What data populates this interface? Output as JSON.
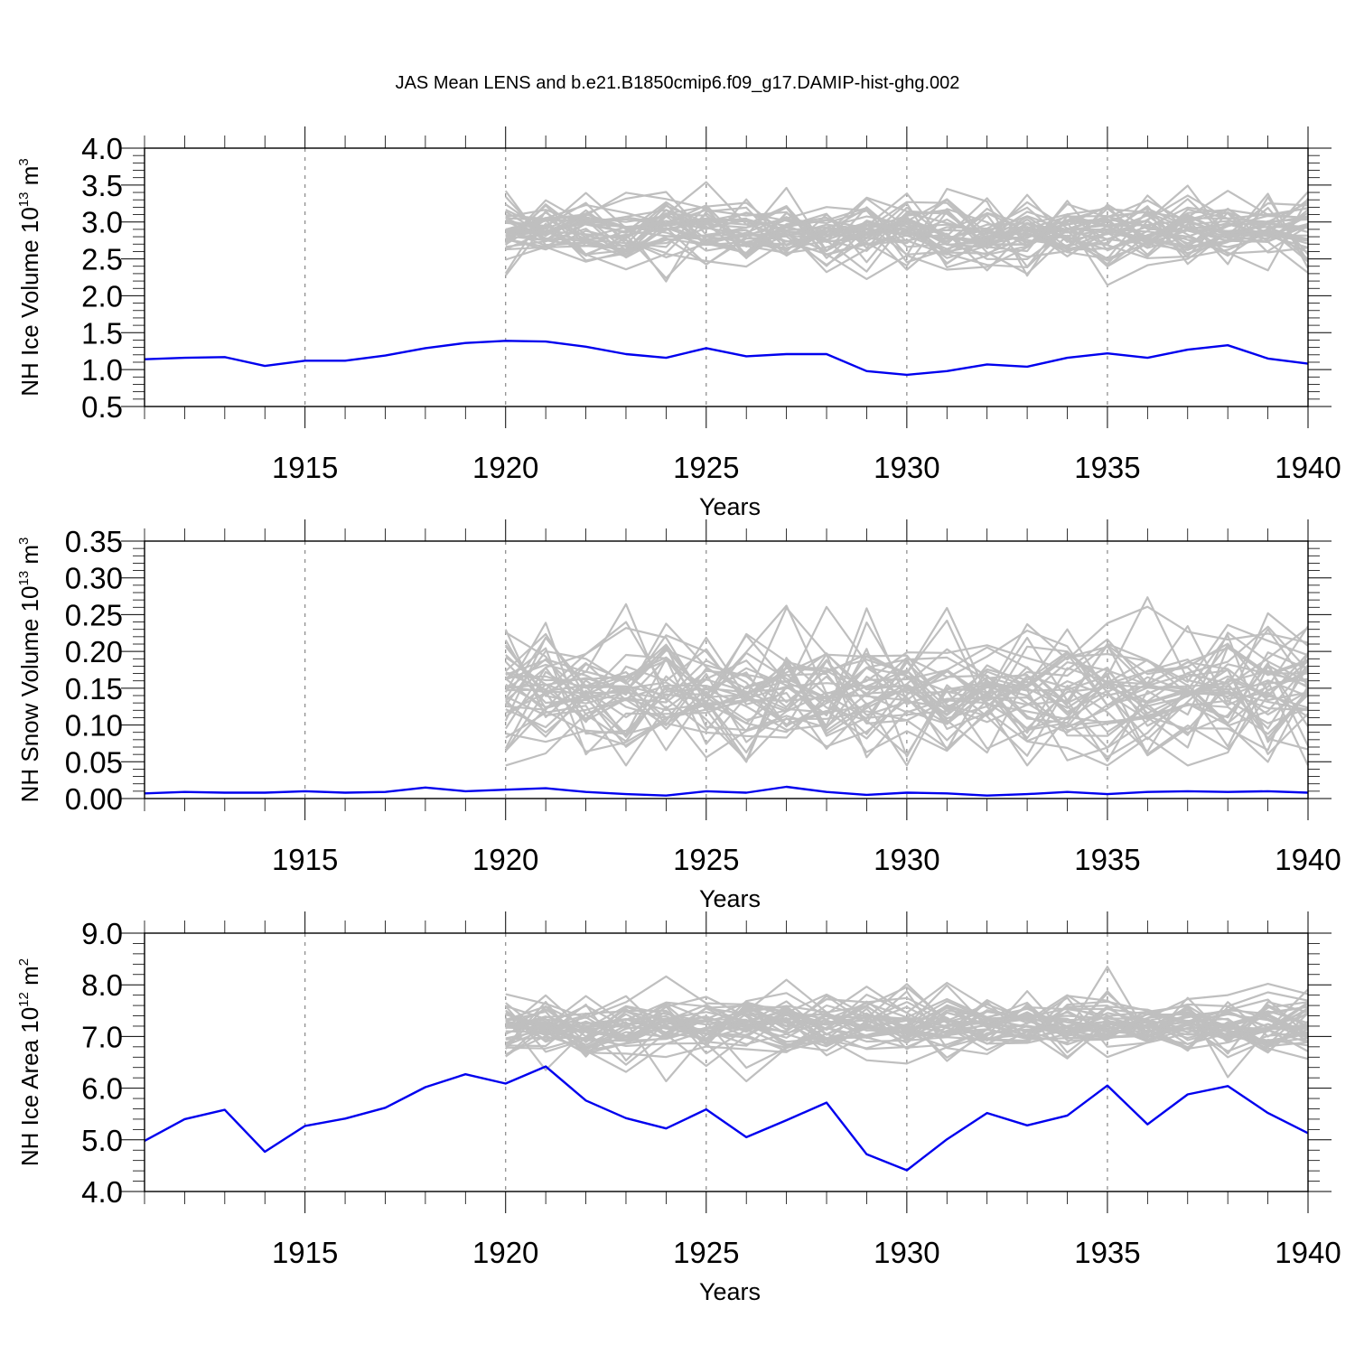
{
  "figure": {
    "title": "JAS Mean LENS and b.e21.B1850cmip6.f09_g17.DAMIP-hist-ghg.002"
  },
  "colors": {
    "ensemble": "#bfbfbf",
    "observed": "#0000ee",
    "grid": "#888888",
    "axes": "#000000"
  },
  "chart_data": [
    {
      "type": "line",
      "xlabel": "Years",
      "ylabel": "NH Ice Volume 10",
      "ylabel_exp": "13",
      "ylabel_unit": " m",
      "ylabel_unit_exp": "3",
      "xlim": [
        1911,
        1940
      ],
      "ylim": [
        0.5,
        4.0
      ],
      "yticks": [
        "0.5",
        "1.0",
        "1.5",
        "2.0",
        "2.5",
        "3.0",
        "3.5",
        "4.0"
      ],
      "ytick_values": [
        0.5,
        1.0,
        1.5,
        2.0,
        2.5,
        3.0,
        3.5,
        4.0
      ],
      "xticks": [
        1915,
        1920,
        1925,
        1930,
        1935,
        1940
      ],
      "grid": "dashed vertical at major x ticks",
      "ensemble": {
        "start_year": 1920,
        "end_year": 1940,
        "members": 40,
        "center": 2.85,
        "spread": 0.28,
        "min": 2.1,
        "max": 3.65
      },
      "series": [
        {
          "x": [
            1911,
            1912,
            1913,
            1914,
            1915,
            1916,
            1917,
            1918,
            1919,
            1920,
            1921,
            1922,
            1923,
            1924,
            1925,
            1926,
            1927,
            1928,
            1929,
            1930,
            1931,
            1932,
            1933,
            1934,
            1935,
            1936,
            1937,
            1938,
            1939,
            1940
          ],
          "values": [
            1.14,
            1.16,
            1.17,
            1.05,
            1.12,
            1.12,
            1.19,
            1.29,
            1.36,
            1.39,
            1.38,
            1.31,
            1.21,
            1.16,
            1.29,
            1.18,
            1.21,
            1.21,
            0.98,
            0.93,
            0.98,
            1.07,
            1.04,
            1.16,
            1.22,
            1.16,
            1.27,
            1.33,
            1.15,
            1.08
          ]
        }
      ]
    },
    {
      "type": "line",
      "xlabel": "Years",
      "ylabel": "NH Snow Volume 10",
      "ylabel_exp": "13",
      "ylabel_unit": " m",
      "ylabel_unit_exp": "3",
      "xlim": [
        1911,
        1940
      ],
      "ylim": [
        0.0,
        0.35
      ],
      "yticks": [
        "0.00",
        "0.05",
        "0.10",
        "0.15",
        "0.20",
        "0.25",
        "0.30",
        "0.35"
      ],
      "ytick_values": [
        0.0,
        0.05,
        0.1,
        0.15,
        0.2,
        0.25,
        0.3,
        0.35
      ],
      "xticks": [
        1915,
        1920,
        1925,
        1930,
        1935,
        1940
      ],
      "grid": "dashed vertical at major x ticks",
      "ensemble": {
        "start_year": 1920,
        "end_year": 1940,
        "members": 40,
        "center": 0.145,
        "spread": 0.05,
        "min": 0.045,
        "max": 0.315
      },
      "series": [
        {
          "x": [
            1911,
            1912,
            1913,
            1914,
            1915,
            1916,
            1917,
            1918,
            1919,
            1920,
            1921,
            1922,
            1923,
            1924,
            1925,
            1926,
            1927,
            1928,
            1929,
            1930,
            1931,
            1932,
            1933,
            1934,
            1935,
            1936,
            1937,
            1938,
            1939,
            1940
          ],
          "values": [
            0.007,
            0.009,
            0.008,
            0.008,
            0.01,
            0.008,
            0.009,
            0.015,
            0.01,
            0.012,
            0.014,
            0.009,
            0.006,
            0.004,
            0.01,
            0.008,
            0.016,
            0.009,
            0.005,
            0.008,
            0.007,
            0.004,
            0.006,
            0.009,
            0.006,
            0.009,
            0.01,
            0.009,
            0.01,
            0.008
          ]
        }
      ]
    },
    {
      "type": "line",
      "xlabel": "Years",
      "ylabel": "NH Ice Area 10",
      "ylabel_exp": "12",
      "ylabel_unit": " m",
      "ylabel_unit_exp": "2",
      "xlim": [
        1911,
        1940
      ],
      "ylim": [
        4.0,
        9.0
      ],
      "yticks": [
        "4.0",
        "5.0",
        "6.0",
        "7.0",
        "8.0",
        "9.0"
      ],
      "ytick_values": [
        4.0,
        5.0,
        6.0,
        7.0,
        8.0,
        9.0
      ],
      "xticks": [
        1915,
        1920,
        1925,
        1930,
        1935,
        1940
      ],
      "grid": "dashed vertical at major x ticks",
      "ensemble": {
        "start_year": 1920,
        "end_year": 1940,
        "members": 40,
        "center": 7.2,
        "spread": 0.35,
        "min": 6.0,
        "max": 8.35
      },
      "series": [
        {
          "x": [
            1911,
            1912,
            1913,
            1914,
            1915,
            1916,
            1917,
            1918,
            1919,
            1920,
            1921,
            1922,
            1923,
            1924,
            1925,
            1926,
            1927,
            1928,
            1929,
            1930,
            1931,
            1932,
            1933,
            1934,
            1935,
            1936,
            1937,
            1938,
            1939,
            1940
          ],
          "values": [
            4.98,
            5.4,
            5.58,
            4.77,
            5.27,
            5.41,
            5.62,
            6.02,
            6.27,
            6.09,
            6.42,
            5.76,
            5.42,
            5.22,
            5.59,
            5.05,
            5.38,
            5.72,
            4.72,
            4.41,
            5.01,
            5.52,
            5.28,
            5.47,
            6.05,
            5.3,
            5.88,
            6.04,
            5.52,
            5.13
          ]
        }
      ]
    }
  ]
}
